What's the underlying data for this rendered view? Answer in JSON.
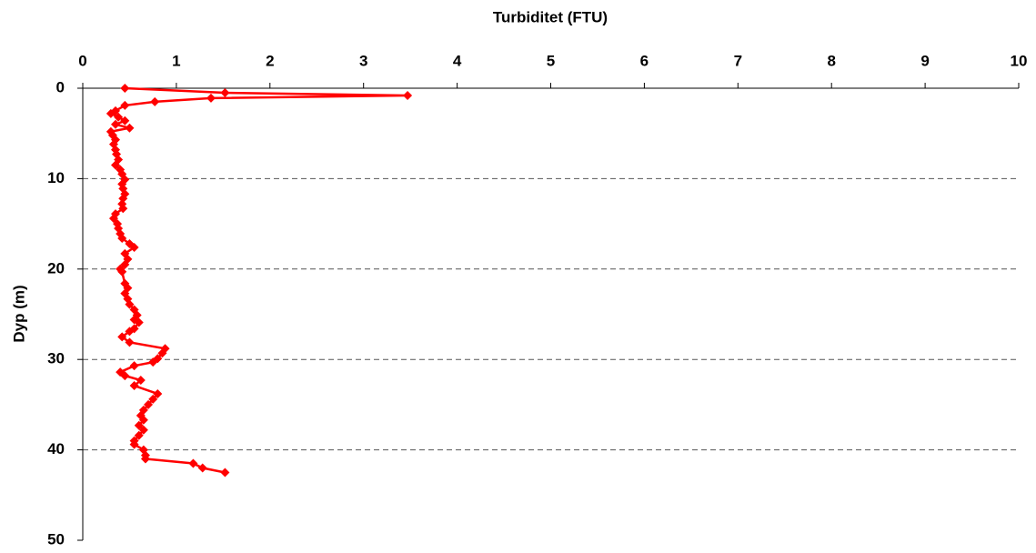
{
  "chart_data": {
    "type": "line",
    "title": "Turbiditet (FTU)",
    "ylabel": "Dyp (m)",
    "color": "#ff0000",
    "x": [
      0.45,
      1.52,
      3.47,
      1.37,
      0.77,
      0.45,
      0.35,
      0.3,
      0.38,
      0.45,
      0.35,
      0.5,
      0.3,
      0.32,
      0.35,
      0.33,
      0.35,
      0.36,
      0.38,
      0.35,
      0.4,
      0.42,
      0.45,
      0.42,
      0.43,
      0.45,
      0.43,
      0.42,
      0.43,
      0.35,
      0.33,
      0.37,
      0.38,
      0.4,
      0.42,
      0.5,
      0.55,
      0.45,
      0.48,
      0.45,
      0.4,
      0.42,
      0.45,
      0.48,
      0.45,
      0.48,
      0.5,
      0.55,
      0.58,
      0.55,
      0.6,
      0.55,
      0.5,
      0.42,
      0.5,
      0.88,
      0.85,
      0.8,
      0.75,
      0.55,
      0.4,
      0.45,
      0.62,
      0.55,
      0.8,
      0.75,
      0.7,
      0.65,
      0.62,
      0.65,
      0.6,
      0.65,
      0.6,
      0.55,
      0.55,
      0.65,
      0.67,
      0.67,
      1.18,
      1.28,
      1.52
    ],
    "y": [
      0.0,
      0.5,
      0.8,
      1.1,
      1.5,
      1.9,
      2.5,
      2.8,
      3.2,
      3.6,
      4.0,
      4.4,
      4.8,
      5.2,
      5.7,
      6.2,
      6.8,
      7.3,
      7.9,
      8.5,
      9.0,
      9.5,
      10.1,
      10.6,
      11.1,
      11.7,
      12.2,
      12.8,
      13.3,
      13.9,
      14.4,
      15.0,
      15.5,
      16.1,
      16.6,
      17.2,
      17.6,
      18.3,
      18.9,
      19.5,
      20.0,
      20.3,
      21.6,
      22.1,
      22.7,
      23.3,
      23.9,
      24.5,
      25.1,
      25.6,
      25.9,
      26.6,
      26.9,
      27.5,
      28.1,
      28.8,
      29.3,
      29.9,
      30.3,
      30.7,
      31.4,
      31.8,
      32.3,
      32.9,
      33.8,
      34.4,
      35.0,
      35.6,
      36.2,
      36.7,
      37.3,
      37.8,
      38.4,
      39.0,
      39.4,
      40.0,
      40.6,
      41.0,
      41.5,
      42.0,
      42.5
    ],
    "xlim": [
      0,
      10
    ],
    "xticks": [
      0,
      1,
      2,
      3,
      4,
      5,
      6,
      7,
      8,
      9,
      10
    ],
    "ylim": [
      0,
      50
    ],
    "yticks": [
      0,
      10,
      20,
      30,
      40,
      50
    ],
    "y_inverted": true,
    "grid": true,
    "grid_style": "dashed"
  }
}
